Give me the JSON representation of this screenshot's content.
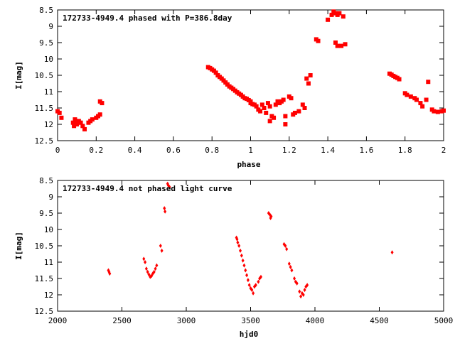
{
  "chart_data": [
    {
      "type": "scatter",
      "title": "172733-4949.4 phased with P=386.8day",
      "xlabel": "phase",
      "ylabel": "I[mag]",
      "xlim": [
        0,
        2
      ],
      "ylim": [
        8.5,
        12.5
      ],
      "y_inverted": true,
      "x_ticks": [
        "0",
        "0.2",
        "0.4",
        "0.6",
        "0.8",
        "1",
        "1.2",
        "1.4",
        "1.6",
        "1.8",
        "2"
      ],
      "y_ticks": [
        "8.5",
        "9",
        "9.5",
        "10",
        "10.5",
        "11",
        "11.5",
        "12",
        "12.5"
      ],
      "grid": false,
      "color": "#ff0000",
      "marker": "square",
      "points": [
        [
          0.0,
          11.6
        ],
        [
          0.01,
          11.65
        ],
        [
          0.02,
          11.8
        ],
        [
          0.08,
          11.95
        ],
        [
          0.085,
          12.05
        ],
        [
          0.09,
          11.85
        ],
        [
          0.095,
          11.9
        ],
        [
          0.1,
          12.0
        ],
        [
          0.105,
          11.95
        ],
        [
          0.11,
          11.9
        ],
        [
          0.12,
          11.95
        ],
        [
          0.13,
          12.05
        ],
        [
          0.14,
          12.15
        ],
        [
          0.16,
          11.95
        ],
        [
          0.17,
          11.9
        ],
        [
          0.18,
          11.85
        ],
        [
          0.2,
          11.8
        ],
        [
          0.21,
          11.75
        ],
        [
          0.22,
          11.3
        ],
        [
          0.23,
          11.35
        ],
        [
          0.22,
          11.7
        ],
        [
          0.78,
          10.25
        ],
        [
          0.79,
          10.28
        ],
        [
          0.8,
          10.32
        ],
        [
          0.81,
          10.36
        ],
        [
          0.82,
          10.42
        ],
        [
          0.83,
          10.5
        ],
        [
          0.84,
          10.55
        ],
        [
          0.85,
          10.6
        ],
        [
          0.86,
          10.66
        ],
        [
          0.87,
          10.72
        ],
        [
          0.88,
          10.78
        ],
        [
          0.89,
          10.84
        ],
        [
          0.9,
          10.88
        ],
        [
          0.91,
          10.92
        ],
        [
          0.92,
          10.97
        ],
        [
          0.93,
          11.02
        ],
        [
          0.94,
          11.06
        ],
        [
          0.95,
          11.1
        ],
        [
          0.96,
          11.15
        ],
        [
          0.97,
          11.2
        ],
        [
          0.98,
          11.22
        ],
        [
          0.99,
          11.26
        ],
        [
          1.0,
          11.3
        ],
        [
          1.0,
          11.35
        ],
        [
          1.01,
          11.38
        ],
        [
          1.02,
          11.4
        ],
        [
          1.03,
          11.45
        ],
        [
          1.04,
          11.55
        ],
        [
          1.05,
          11.6
        ],
        [
          1.06,
          11.4
        ],
        [
          1.07,
          11.5
        ],
        [
          1.08,
          11.65
        ],
        [
          1.09,
          11.35
        ],
        [
          1.1,
          11.45
        ],
        [
          1.1,
          11.9
        ],
        [
          1.11,
          11.75
        ],
        [
          1.12,
          11.8
        ],
        [
          1.13,
          11.4
        ],
        [
          1.14,
          11.3
        ],
        [
          1.15,
          11.35
        ],
        [
          1.16,
          11.3
        ],
        [
          1.17,
          11.25
        ],
        [
          1.18,
          12.0
        ],
        [
          1.18,
          11.75
        ],
        [
          1.2,
          11.15
        ],
        [
          1.21,
          11.2
        ],
        [
          1.22,
          11.7
        ],
        [
          1.23,
          11.65
        ],
        [
          1.25,
          11.6
        ],
        [
          1.27,
          11.4
        ],
        [
          1.28,
          11.5
        ],
        [
          1.29,
          10.6
        ],
        [
          1.3,
          10.75
        ],
        [
          1.31,
          10.5
        ],
        [
          1.34,
          9.4
        ],
        [
          1.35,
          9.45
        ],
        [
          1.4,
          8.8
        ],
        [
          1.42,
          8.65
        ],
        [
          1.43,
          8.55
        ],
        [
          1.44,
          8.6
        ],
        [
          1.45,
          8.65
        ],
        [
          1.46,
          8.6
        ],
        [
          1.48,
          8.7
        ],
        [
          1.44,
          9.5
        ],
        [
          1.45,
          9.6
        ],
        [
          1.47,
          9.6
        ],
        [
          1.49,
          9.55
        ],
        [
          1.72,
          10.45
        ],
        [
          1.73,
          10.48
        ],
        [
          1.74,
          10.52
        ],
        [
          1.75,
          10.55
        ],
        [
          1.76,
          10.58
        ],
        [
          1.77,
          10.62
        ],
        [
          1.8,
          11.05
        ],
        [
          1.81,
          11.1
        ],
        [
          1.83,
          11.15
        ],
        [
          1.85,
          11.2
        ],
        [
          1.86,
          11.25
        ],
        [
          1.88,
          11.35
        ],
        [
          1.89,
          11.45
        ],
        [
          1.91,
          11.25
        ],
        [
          1.92,
          10.7
        ],
        [
          1.94,
          11.55
        ],
        [
          1.95,
          11.6
        ],
        [
          1.97,
          11.62
        ],
        [
          1.99,
          11.6
        ],
        [
          2.0,
          11.58
        ]
      ]
    },
    {
      "type": "scatter",
      "title": "172733-4949.4 not phased light curve",
      "xlabel": "hjd0",
      "ylabel": "I[mag]",
      "xlim": [
        2000,
        5000
      ],
      "ylim": [
        8.5,
        12.5
      ],
      "y_inverted": true,
      "x_ticks": [
        "2000",
        "2500",
        "3000",
        "3500",
        "4000",
        "4500",
        "5000"
      ],
      "y_ticks": [
        "8.5",
        "9",
        "9.5",
        "10",
        "10.5",
        "11",
        "11.5",
        "12",
        "12.5"
      ],
      "grid": false,
      "color": "#ff0000",
      "marker": "diamond",
      "points": [
        [
          2395,
          11.25
        ],
        [
          2400,
          11.3
        ],
        [
          2405,
          11.35
        ],
        [
          2670,
          10.9
        ],
        [
          2680,
          11.0
        ],
        [
          2690,
          11.2
        ],
        [
          2700,
          11.3
        ],
        [
          2710,
          11.38
        ],
        [
          2720,
          11.45
        ],
        [
          2730,
          11.42
        ],
        [
          2740,
          11.35
        ],
        [
          2750,
          11.3
        ],
        [
          2760,
          11.2
        ],
        [
          2770,
          11.1
        ],
        [
          2800,
          10.5
        ],
        [
          2810,
          10.65
        ],
        [
          2830,
          9.35
        ],
        [
          2835,
          9.45
        ],
        [
          2855,
          8.6
        ],
        [
          2860,
          8.65
        ],
        [
          2870,
          8.7
        ],
        [
          3390,
          10.25
        ],
        [
          3395,
          10.3
        ],
        [
          3400,
          10.4
        ],
        [
          3410,
          10.5
        ],
        [
          3420,
          10.65
        ],
        [
          3430,
          10.8
        ],
        [
          3440,
          10.95
        ],
        [
          3450,
          11.1
        ],
        [
          3460,
          11.25
        ],
        [
          3470,
          11.4
        ],
        [
          3480,
          11.55
        ],
        [
          3490,
          11.7
        ],
        [
          3500,
          11.8
        ],
        [
          3510,
          11.85
        ],
        [
          3520,
          11.95
        ],
        [
          3530,
          11.75
        ],
        [
          3540,
          11.7
        ],
        [
          3560,
          11.6
        ],
        [
          3570,
          11.5
        ],
        [
          3580,
          11.45
        ],
        [
          3640,
          9.5
        ],
        [
          3650,
          9.55
        ],
        [
          3660,
          9.6
        ],
        [
          3655,
          9.65
        ],
        [
          3760,
          10.45
        ],
        [
          3770,
          10.5
        ],
        [
          3780,
          10.6
        ],
        [
          3800,
          11.05
        ],
        [
          3810,
          11.15
        ],
        [
          3820,
          11.25
        ],
        [
          3840,
          11.5
        ],
        [
          3850,
          11.6
        ],
        [
          3860,
          11.65
        ],
        [
          3880,
          11.9
        ],
        [
          3890,
          12.05
        ],
        [
          3900,
          11.95
        ],
        [
          3910,
          12.0
        ],
        [
          3920,
          11.85
        ],
        [
          3930,
          11.75
        ],
        [
          3940,
          11.7
        ],
        [
          4600,
          10.7
        ]
      ]
    }
  ]
}
